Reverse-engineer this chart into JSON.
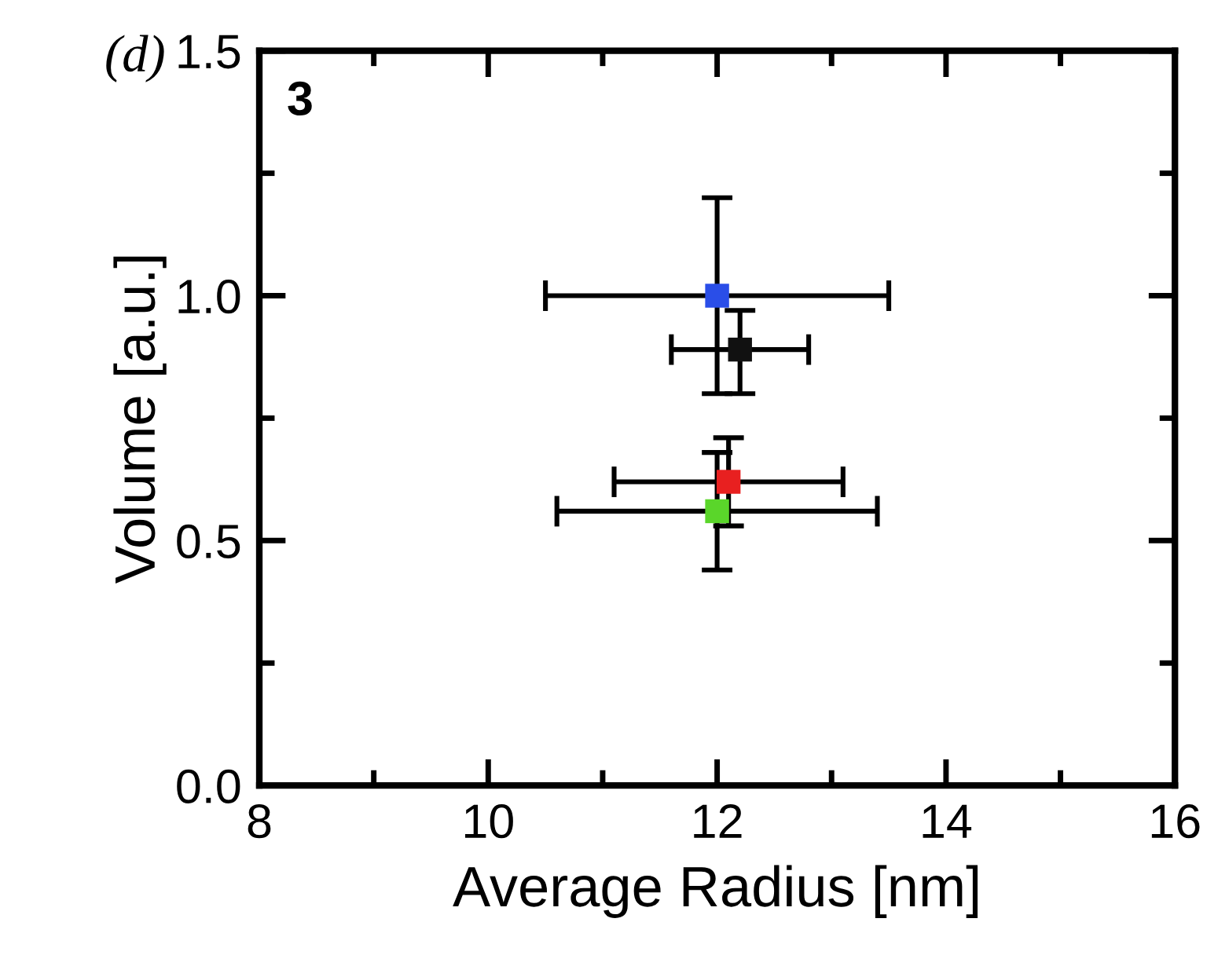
{
  "chart_data": {
    "type": "scatter",
    "xlabel": "Average Radius [nm]",
    "ylabel": "Volume [a.u.]",
    "annotations": [
      "(d)",
      "3"
    ],
    "xlim": [
      8,
      16
    ],
    "xticks": [
      8,
      10,
      12,
      14,
      16
    ],
    "ylim": [
      0.0,
      1.5
    ],
    "yticks": [
      {
        "value": 0.0,
        "label": "0.0"
      },
      {
        "value": 0.5,
        "label": "0.5"
      },
      {
        "value": 1.0,
        "label": "1.0"
      },
      {
        "value": 1.5,
        "label": "1.5"
      }
    ],
    "marker": "square",
    "grid": false,
    "legend": false,
    "series": [
      {
        "color": "#2a4ee8",
        "x": [
          12.0
        ],
        "values": [
          1.0
        ],
        "errors": [
          0.2
        ],
        "xerrors": [
          1.5
        ]
      },
      {
        "color": "#111111",
        "x": [
          12.2
        ],
        "values": [
          0.89
        ],
        "errors": [
          [
            0.8,
            0.97
          ]
        ],
        "xerrors": [
          [
            11.6,
            12.8
          ]
        ]
      },
      {
        "color": "#e82020",
        "x": [
          12.1
        ],
        "values": [
          0.62
        ],
        "errors": [
          [
            0.53,
            0.71
          ]
        ],
        "xerrors": [
          [
            11.1,
            13.1
          ]
        ]
      },
      {
        "color": "#5ad62a",
        "x": [
          12.0
        ],
        "values": [
          0.56
        ],
        "errors": [
          [
            0.44,
            0.68
          ]
        ],
        "xerrors": [
          [
            10.6,
            13.4
          ]
        ]
      }
    ]
  }
}
